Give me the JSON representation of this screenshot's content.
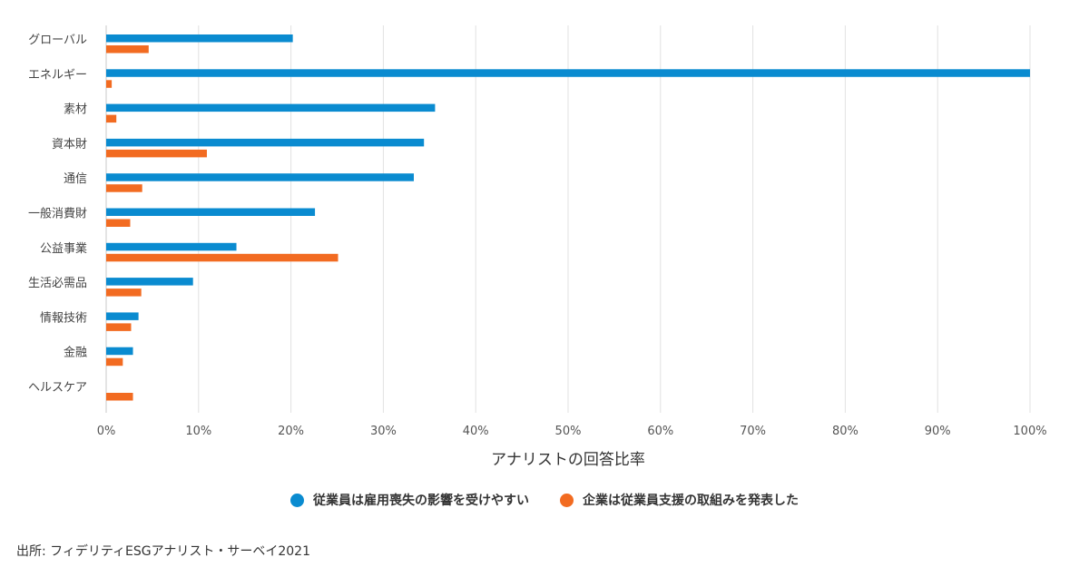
{
  "chart_data": {
    "type": "bar",
    "orientation": "horizontal",
    "categories": [
      "グローバル",
      "エネルギー",
      "素材",
      "資本財",
      "通信",
      "一般消費財",
      "公益事業",
      "生活必需品",
      "情報技術",
      "金融",
      "ヘルスケア"
    ],
    "series": [
      {
        "name": "従業員は雇用喪失の影響を受けやすい",
        "color": "#0a8bd0",
        "values": [
          20.2,
          100,
          35.6,
          34.4,
          33.3,
          22.6,
          14.1,
          9.4,
          3.5,
          2.9,
          0
        ]
      },
      {
        "name": "企業は従業員支援の取組みを発表した",
        "color": "#f26b21",
        "values": [
          4.6,
          0.6,
          1.1,
          10.9,
          3.9,
          2.6,
          25.1,
          3.8,
          2.7,
          1.8,
          2.9
        ]
      }
    ],
    "xlabel": "アナリストの回答比率",
    "xlim": [
      0,
      100
    ],
    "x_ticks": [
      "0%",
      "10%",
      "20%",
      "30%",
      "40%",
      "50%",
      "60%",
      "70%",
      "80%",
      "90%",
      "100%"
    ],
    "grid": "vertical",
    "legend_position": "bottom"
  },
  "source_note": "出所: フィデリティESGアナリスト・サーベイ2021"
}
